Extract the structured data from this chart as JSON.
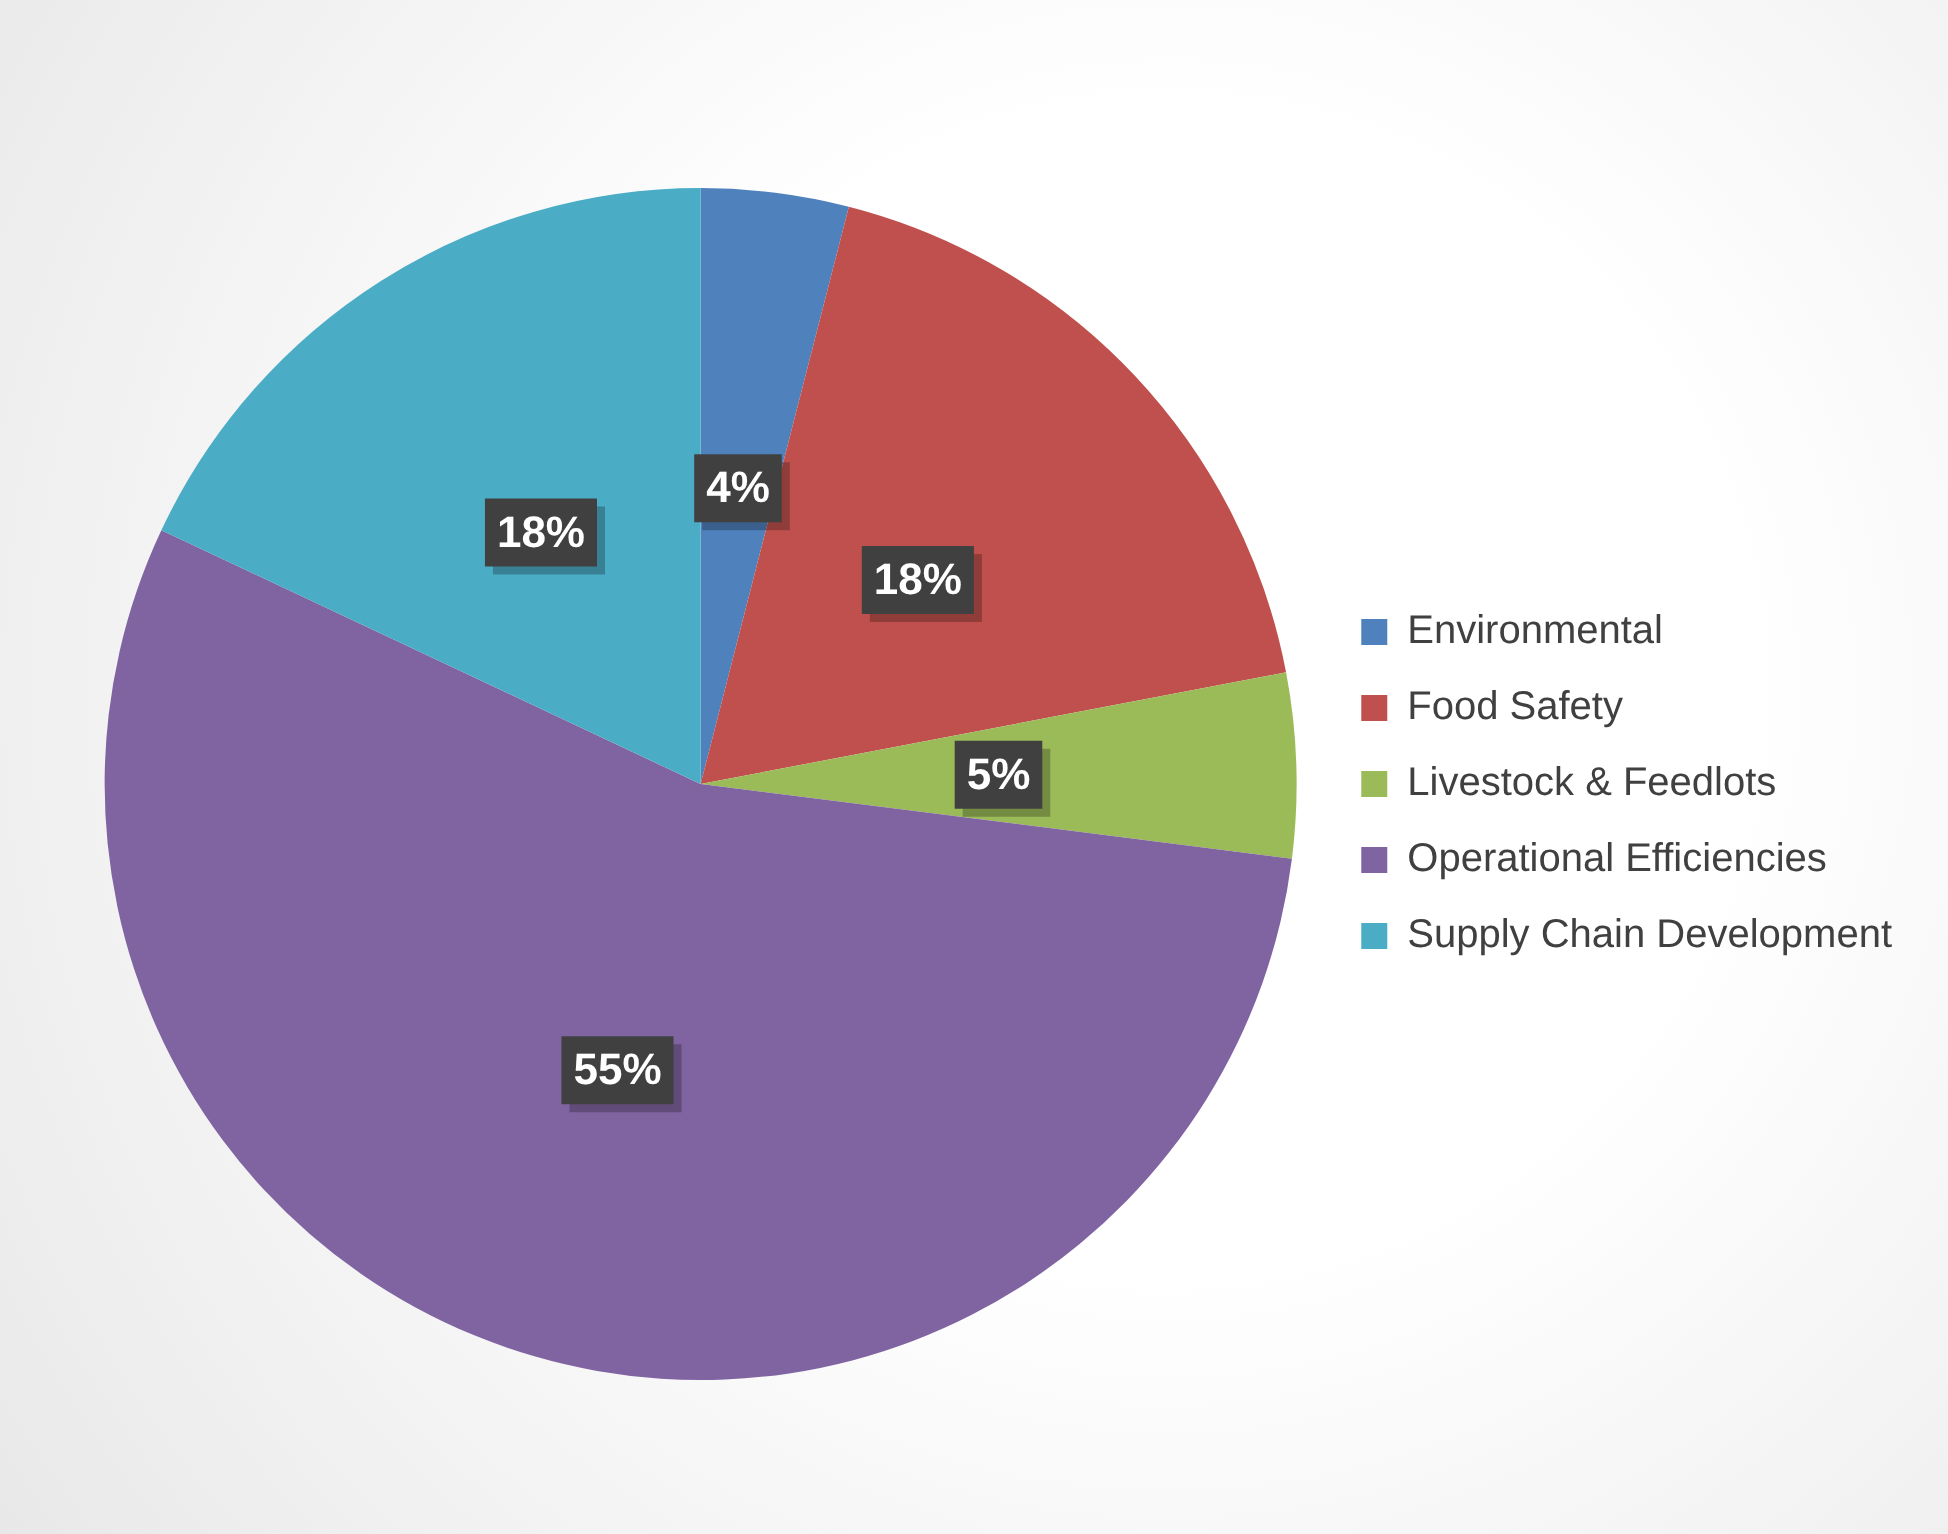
{
  "chart_data": {
    "type": "pie",
    "categories": [
      "Environmental",
      "Food Safety",
      "Livestock & Feedlots",
      "Operational Efficiencies",
      "Supply Chain Development"
    ],
    "values": [
      4,
      18,
      5,
      55,
      18
    ],
    "colors": [
      "#4f81bd",
      "#c0504d",
      "#9bbb59",
      "#8064a2",
      "#4bacc6"
    ],
    "value_labels": [
      "4%",
      "18%",
      "5%",
      "55%",
      "18%"
    ],
    "legend": "right"
  }
}
